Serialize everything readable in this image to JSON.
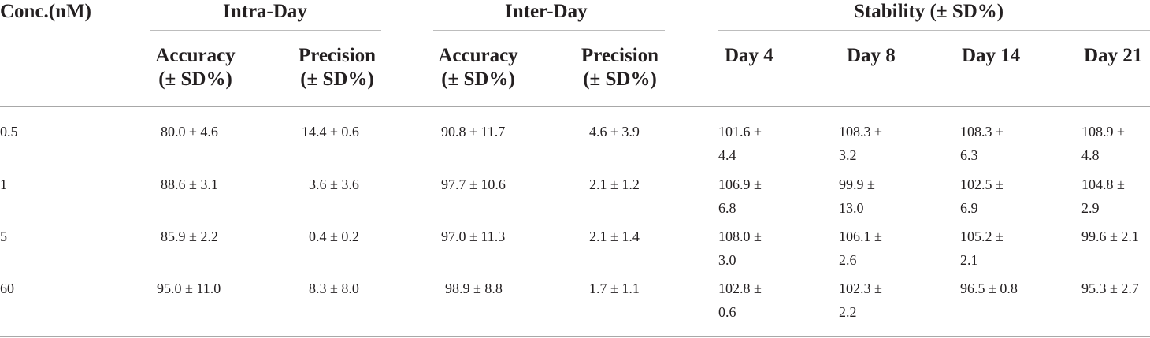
{
  "table": {
    "conc_header": "Conc.(nM)",
    "groups": {
      "intra": "Intra-Day",
      "inter": "Inter-Day",
      "stability": "Stability (± SD%)"
    },
    "subheaders": {
      "intra_accuracy": [
        "Accuracy",
        "(± SD%)"
      ],
      "intra_precision": [
        "Precision",
        "(± SD%)"
      ],
      "inter_accuracy": [
        "Accuracy",
        "(± SD%)"
      ],
      "inter_precision": [
        "Precision",
        "(± SD%)"
      ],
      "day4": "Day 4",
      "day8": "Day 8",
      "day14": "Day 14",
      "day21": "Day 21"
    },
    "rows": [
      {
        "conc": "0.5",
        "intra_acc": "80.0 ± 4.6",
        "intra_prec": "14.4 ± 0.6",
        "inter_acc": "90.8 ± 11.7",
        "inter_prec": "4.6 ± 3.9",
        "day4": [
          "101.6 ±",
          "4.4"
        ],
        "day8": [
          "108.3 ±",
          "3.2"
        ],
        "day14": [
          "108.3 ±",
          "6.3"
        ],
        "day21": [
          "108.9 ±",
          "4.8"
        ]
      },
      {
        "conc": "1",
        "intra_acc": "88.6 ± 3.1",
        "intra_prec": "3.6 ± 3.6",
        "inter_acc": "97.7 ± 10.6",
        "inter_prec": "2.1 ± 1.2",
        "day4": [
          "106.9 ±",
          "6.8"
        ],
        "day8": [
          "99.9 ±",
          "13.0"
        ],
        "day14": [
          "102.5 ±",
          "6.9"
        ],
        "day21": [
          "104.8 ±",
          "2.9"
        ]
      },
      {
        "conc": "5",
        "intra_acc": "85.9 ± 2.2",
        "intra_prec": "0.4 ± 0.2",
        "inter_acc": "97.0 ± 11.3",
        "inter_prec": "2.1 ± 1.4",
        "day4": [
          "108.0 ±",
          "3.0"
        ],
        "day8": [
          "106.1 ±",
          "2.6"
        ],
        "day14": [
          "105.2 ±",
          "2.1"
        ],
        "day21": [
          "99.6 ± 2.1"
        ]
      },
      {
        "conc": "60",
        "intra_acc": "95.0 ± 11.0",
        "intra_prec": "8.3 ± 8.0",
        "inter_acc": "98.9 ± 8.8",
        "inter_prec": "1.7 ± 1.1",
        "day4": [
          "102.8 ±",
          "0.6"
        ],
        "day8": [
          "102.3 ±",
          "2.2"
        ],
        "day14": [
          "96.5 ± 0.8"
        ],
        "day21": [
          "95.3 ± 2.7"
        ]
      }
    ]
  }
}
